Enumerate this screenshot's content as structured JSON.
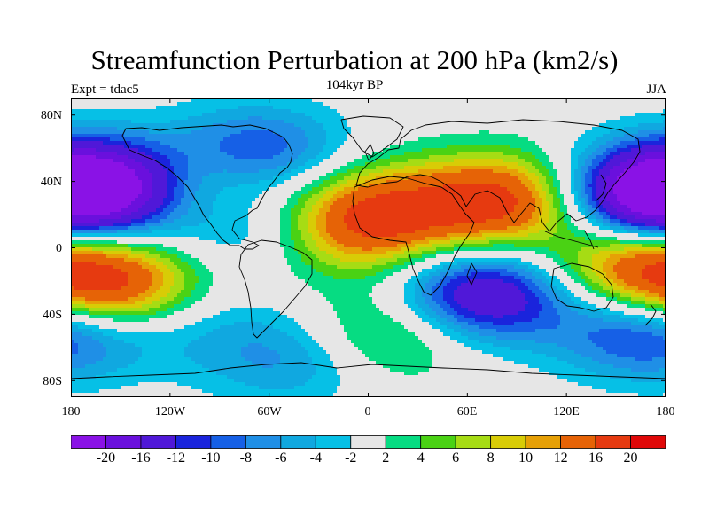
{
  "title": "Streamfunction Perturbation at 200 hPa (km2/s)",
  "subtitle_left": "Expt = tdac5",
  "subtitle_center": "104kyr BP",
  "subtitle_right": "JJA",
  "lat_ticks": [
    "80N",
    "40N",
    "0",
    "40S",
    "80S"
  ],
  "lon_ticks": [
    "180",
    "120W",
    "60W",
    "0",
    "60E",
    "120E",
    "180"
  ],
  "colorbar": {
    "labels": [
      "-20",
      "-16",
      "-12",
      "-10",
      "-8",
      "-6",
      "-4",
      "-2",
      "2",
      "4",
      "6",
      "8",
      "10",
      "12",
      "16",
      "20"
    ],
    "colors": [
      "#8a12e6",
      "#6a10dd",
      "#5018d8",
      "#1a24dc",
      "#1660e6",
      "#1f8fe6",
      "#10a8e0",
      "#06c0e6",
      "#e6e6e6",
      "#06dc82",
      "#4ad214",
      "#a6dc14",
      "#d8cc06",
      "#e6a006",
      "#e66306",
      "#e63a10",
      "#e00808"
    ]
  },
  "field_features": [
    {
      "name": "Central Pacific anticyclone south",
      "lon": -155,
      "lat": -24,
      "value": 17
    },
    {
      "name": "Asian monsoon high",
      "lon": 80,
      "lat": 28,
      "value": 18
    },
    {
      "name": "North African high",
      "lon": 0,
      "lat": 22,
      "value": 14
    },
    {
      "name": "North Pacific low",
      "lon": -160,
      "lat": 38,
      "value": -20
    },
    {
      "name": "West Pacific low",
      "lon": 168,
      "lat": 30,
      "value": -19
    },
    {
      "name": "Indian Ocean low",
      "lon": 70,
      "lat": -28,
      "value": -17
    },
    {
      "name": "Hudson Bay low",
      "lon": -70,
      "lat": 56,
      "value": -13
    },
    {
      "name": "Caribbean low",
      "lon": -75,
      "lat": 18,
      "value": -8
    },
    {
      "name": "South Pacific low",
      "lon": 170,
      "lat": -50,
      "value": -13
    },
    {
      "name": "East Pacific high",
      "lon": -95,
      "lat": 38,
      "value": 11
    },
    {
      "name": "Southern Ocean high",
      "lon": 10,
      "lat": -52,
      "value": 8
    },
    {
      "name": "SW Pacific high",
      "lon": 160,
      "lat": -10,
      "value": 13
    },
    {
      "name": "Atlantic high",
      "lon": -5,
      "lat": 5,
      "value": 6
    },
    {
      "name": "Antarctic low",
      "lon": -45,
      "lat": -66,
      "value": -7
    },
    {
      "name": "Pacific low",
      "lon": -110,
      "lat": -45,
      "value": -4
    }
  ]
}
